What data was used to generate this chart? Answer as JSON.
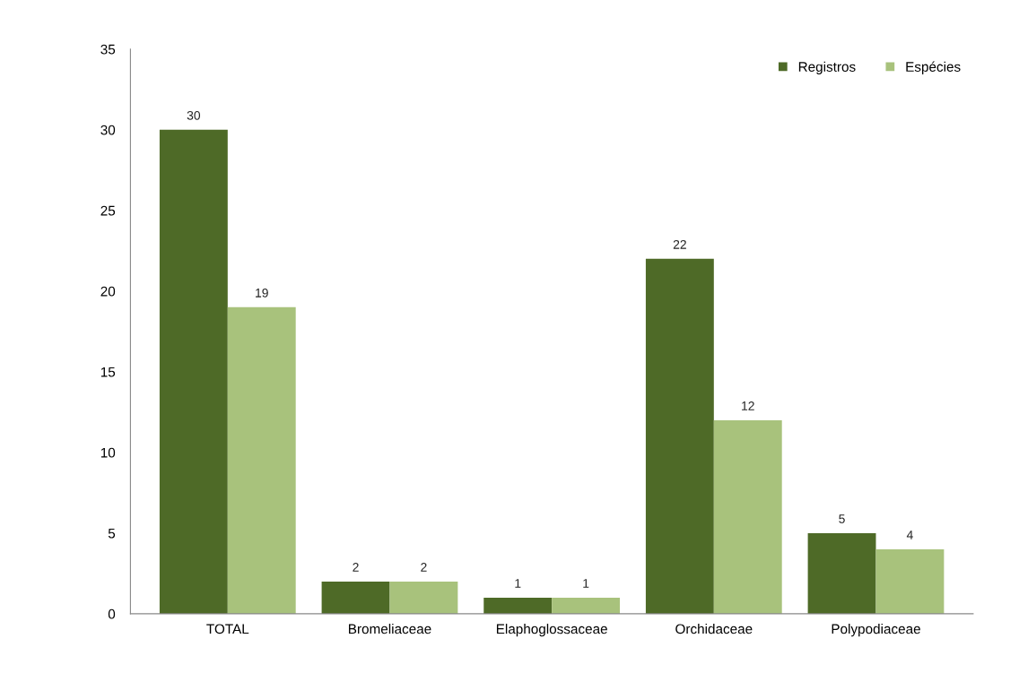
{
  "chart_data": {
    "type": "bar",
    "categories": [
      "TOTAL",
      "Bromeliaceae",
      "Elaphoglossaceae",
      "Orchidaceae",
      "Polypodiaceae"
    ],
    "series": [
      {
        "name": "Registros",
        "color": "#4e6a27",
        "values": [
          30,
          2,
          1,
          22,
          5
        ]
      },
      {
        "name": "Espécies",
        "color": "#a8c27c",
        "values": [
          19,
          2,
          1,
          12,
          4
        ]
      }
    ],
    "ylim": [
      0,
      35
    ],
    "yticks": [
      0,
      5,
      10,
      15,
      20,
      25,
      30,
      35
    ],
    "grid": false,
    "legend": "top right",
    "data_labels": true
  }
}
